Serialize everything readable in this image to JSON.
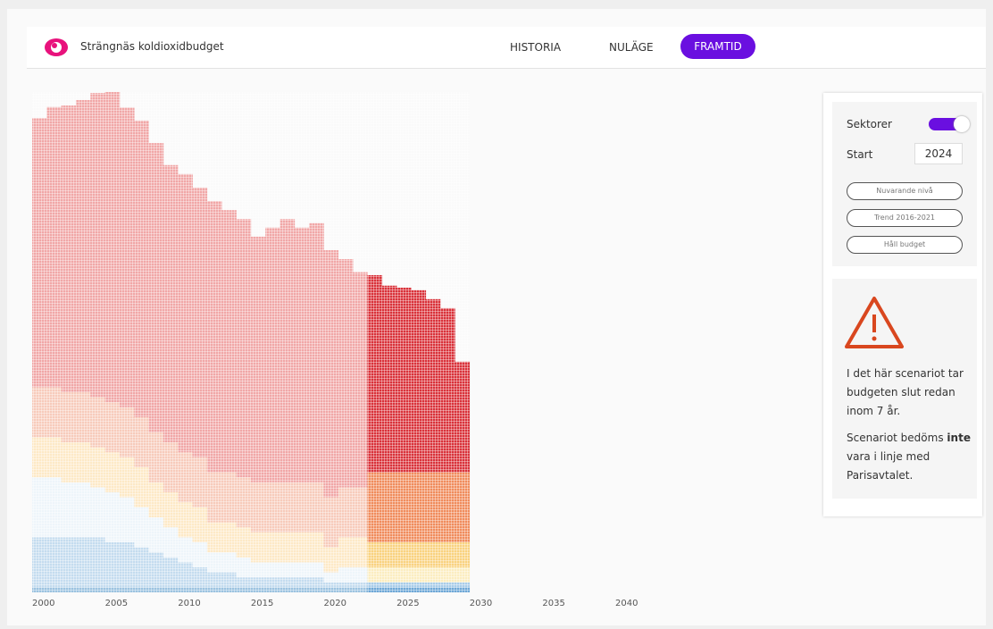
{
  "header": {
    "title": "Strängnäs koldioxidbudget",
    "nav": [
      "HISTORIA",
      "NULÄGE",
      "FRAMTID"
    ],
    "active": 2
  },
  "panel": {
    "toggle_label": "Sektorer",
    "start_label": "Start",
    "start_value": "2024",
    "buttons": [
      "Nuvarande nivå",
      "Trend 2016-2021",
      "Håll budget"
    ]
  },
  "warning": {
    "text": "I det här scenariot tar budgeten slut redan inom 7 år.",
    "text2_before": "Scenariot bedöms",
    "text2_bold": "inte",
    "text2_after": "vara i linje med Parisavtalet."
  },
  "chart_data": {
    "type": "stacked_area",
    "xlim": [
      2000,
      2040
    ],
    "xticks": [
      2000,
      2005,
      2010,
      2015,
      2020,
      2025,
      2030,
      2035,
      2040
    ],
    "ylim": [
      0,
      100
    ],
    "forecast_from": 2023,
    "x": [
      2000,
      2001,
      2002,
      2003,
      2004,
      2005,
      2006,
      2007,
      2008,
      2009,
      2010,
      2011,
      2012,
      2013,
      2014,
      2015,
      2016,
      2017,
      2018,
      2019,
      2020,
      2021,
      2022,
      2023,
      2024,
      2025,
      2026,
      2027,
      2028,
      2029
    ],
    "series": [
      {
        "color": "#9cc3e0",
        "forecast_color": "#6fa8d6",
        "values": [
          1,
          1,
          1,
          1,
          1,
          1,
          1,
          1,
          1,
          1,
          1,
          1,
          1,
          1,
          1,
          1,
          1,
          1,
          1,
          1,
          1,
          1,
          1,
          1,
          1,
          1,
          1,
          1,
          1,
          1
        ]
      },
      {
        "color": "#c4dcef",
        "forecast_color": "#a9cde9",
        "values": [
          10,
          10,
          10,
          10,
          10,
          9,
          9,
          8,
          7,
          6,
          5,
          4,
          3,
          3,
          2,
          2,
          2,
          2,
          2,
          2,
          1,
          1,
          1,
          1,
          1,
          1,
          1,
          1,
          1,
          1
        ]
      },
      {
        "color": "#eef5fa",
        "forecast_color": "#fbedc0",
        "values": [
          12,
          12,
          11,
          11,
          10,
          10,
          9,
          8,
          7,
          6,
          5,
          5,
          4,
          4,
          4,
          3,
          3,
          3,
          3,
          3,
          2,
          3,
          3,
          3,
          3,
          3,
          3,
          3,
          3,
          3
        ]
      },
      {
        "color": "#fde9c6",
        "forecast_color": "#f9d27f",
        "values": [
          8,
          8,
          8,
          8,
          8,
          8,
          8,
          8,
          7,
          7,
          7,
          7,
          6,
          6,
          6,
          6,
          6,
          6,
          6,
          6,
          5,
          6,
          6,
          5,
          5,
          5,
          5,
          5,
          5,
          5
        ]
      },
      {
        "color": "#f7cbbb",
        "forecast_color": "#f08c5c",
        "values": [
          10,
          10,
          10,
          10,
          10,
          10,
          10,
          10,
          10,
          10,
          10,
          10,
          10,
          10,
          10,
          10,
          10,
          10,
          10,
          10,
          10,
          10,
          10,
          14,
          14,
          14,
          14,
          14,
          14,
          14
        ]
      },
      {
        "color": "#f1a7a7",
        "forecast_color": "#d9323a",
        "values": [
          53.8,
          56,
          57.3,
          58.4,
          60.8,
          62,
          59.9,
          59.3,
          57.8,
          55.4,
          55.6,
          53.9,
          54.2,
          52.4,
          51.6,
          49.1,
          50.9,
          52.6,
          50.9,
          51.8,
          49.4,
          45.6,
          43,
          39.4,
          37.3,
          36.9,
          36.4,
          34.6,
          32.8,
          22.1
        ]
      }
    ]
  }
}
